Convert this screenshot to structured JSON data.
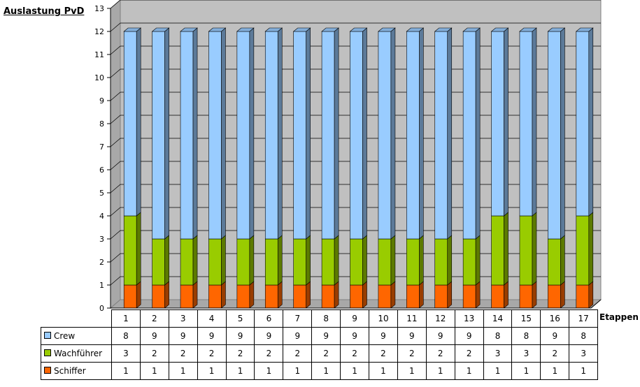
{
  "chart_data": {
    "type": "bar",
    "stacked": true,
    "title": "Auslastung PvD",
    "xlabel": "Etappen",
    "ylabel": "",
    "ylim": [
      0,
      13
    ],
    "yticks": [
      0,
      1,
      2,
      3,
      4,
      5,
      6,
      7,
      8,
      9,
      10,
      11,
      12,
      13
    ],
    "grid": true,
    "legend": "data-table-bottom",
    "categories": [
      "1",
      "2",
      "3",
      "4",
      "5",
      "6",
      "7",
      "8",
      "9",
      "10",
      "11",
      "12",
      "13",
      "14",
      "15",
      "16",
      "17"
    ],
    "series": [
      {
        "name": "Schiffer",
        "color": "#ff6600",
        "values": [
          1,
          1,
          1,
          1,
          1,
          1,
          1,
          1,
          1,
          1,
          1,
          1,
          1,
          1,
          1,
          1,
          1
        ]
      },
      {
        "name": "Wachführer",
        "color": "#99cc00",
        "values": [
          3,
          2,
          2,
          2,
          2,
          2,
          2,
          2,
          2,
          2,
          2,
          2,
          2,
          3,
          3,
          2,
          3
        ]
      },
      {
        "name": "Crew",
        "color": "#99ccff",
        "values": [
          8,
          9,
          9,
          9,
          9,
          9,
          9,
          9,
          9,
          9,
          9,
          9,
          9,
          8,
          8,
          9,
          8
        ]
      }
    ],
    "table_row_order": [
      "Crew",
      "Wachführer",
      "Schiffer"
    ]
  }
}
